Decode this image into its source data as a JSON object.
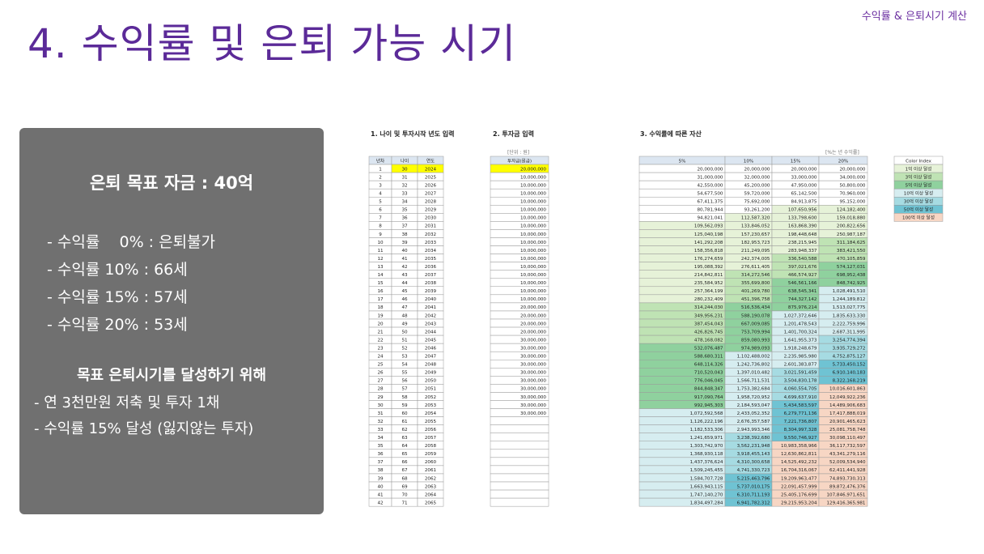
{
  "corner_label": "수익률 & 은퇴시기 계산",
  "title": "4. 수익률 및 은퇴 가능 시기",
  "panel": {
    "goal": "은퇴 목표 자금 : 40억",
    "rates": [
      "- 수익률    0% : 은퇴불가",
      "- 수익률 10% : 66세",
      "- 수익률 15% : 57세",
      "- 수익률 20% : 53세"
    ],
    "subheading": "목표 은퇴시기를 달성하기 위해",
    "plan": [
      "- 연 3천만원 저축 및 투자 1채",
      "- 수익률 15% 달성 (잃지않는 투자)"
    ]
  },
  "section1": {
    "title": "1. 나이 및 투자시작 년도 입력",
    "headers": [
      "년차",
      "나이",
      "연도"
    ]
  },
  "section2": {
    "title": "2. 투자금 입력",
    "unit": "[단위 : 원]",
    "header": "투자금(원금)",
    "values": [
      "20,000,000",
      "10,000,000",
      "10,000,000",
      "10,000,000",
      "10,000,000",
      "10,000,000",
      "10,000,000",
      "10,000,000",
      "10,000,000",
      "10,000,000",
      "10,000,000",
      "10,000,000",
      "10,000,000",
      "10,000,000",
      "10,000,000",
      "10,000,000",
      "10,000,000",
      "20,000,000",
      "20,000,000",
      "20,000,000",
      "20,000,000",
      "30,000,000",
      "30,000,000",
      "30,000,000",
      "30,000,000",
      "30,000,000",
      "30,000,000",
      "30,000,000",
      "30,000,000",
      "30,000,000",
      "30,000,000",
      "",
      "",
      "",
      "",
      "",
      "",
      "",
      "",
      "",
      "",
      ""
    ]
  },
  "section3": {
    "title": "3. 수익률에 따른 자산",
    "unit": "[%는 년 수익률]",
    "headers": [
      "5%",
      "10%",
      "15%",
      "20%"
    ],
    "rows": [
      [
        "20,000,000",
        "20,000,000",
        "20,000,000",
        "20,000,000"
      ],
      [
        "31,000,000",
        "32,000,000",
        "33,000,000",
        "34,000,000"
      ],
      [
        "42,550,000",
        "45,200,000",
        "47,950,000",
        "50,800,000"
      ],
      [
        "54,677,500",
        "59,720,000",
        "65,142,500",
        "70,960,000"
      ],
      [
        "67,411,375",
        "75,692,000",
        "84,913,875",
        "95,152,000"
      ],
      [
        "80,781,944",
        "93,261,200",
        "107,650,956",
        "124,182,400"
      ],
      [
        "94,821,041",
        "112,587,320",
        "133,798,600",
        "159,018,880"
      ],
      [
        "109,562,093",
        "133,846,052",
        "163,868,390",
        "200,822,656"
      ],
      [
        "125,040,198",
        "157,230,657",
        "198,448,648",
        "250,987,187"
      ],
      [
        "141,292,208",
        "182,953,723",
        "238,215,945",
        "311,184,625"
      ],
      [
        "158,356,818",
        "211,249,095",
        "283,948,337",
        "383,421,550"
      ],
      [
        "176,274,659",
        "242,374,005",
        "336,540,588",
        "470,105,859"
      ],
      [
        "195,088,392",
        "276,611,405",
        "397,021,676",
        "574,127,031"
      ],
      [
        "214,842,811",
        "314,272,546",
        "466,574,927",
        "698,952,438"
      ],
      [
        "235,584,952",
        "355,699,800",
        "546,561,166",
        "848,742,925"
      ],
      [
        "257,364,199",
        "401,269,780",
        "638,545,341",
        "1,028,491,510"
      ],
      [
        "280,232,409",
        "451,396,758",
        "744,327,142",
        "1,244,189,812"
      ],
      [
        "314,244,030",
        "516,536,434",
        "875,976,214",
        "1,513,027,775"
      ],
      [
        "349,956,231",
        "588,190,078",
        "1,027,372,646",
        "1,835,633,330"
      ],
      [
        "387,454,043",
        "667,009,085",
        "1,201,478,543",
        "2,222,759,996"
      ],
      [
        "426,826,745",
        "753,709,994",
        "1,401,700,324",
        "2,687,311,995"
      ],
      [
        "478,168,082",
        "859,080,993",
        "1,641,955,373",
        "3,254,774,394"
      ],
      [
        "532,076,487",
        "974,989,093",
        "1,918,248,679",
        "3,935,729,272"
      ],
      [
        "588,680,311",
        "1,102,488,002",
        "2,235,985,980",
        "4,752,875,127"
      ],
      [
        "648,114,326",
        "1,242,736,802",
        "2,601,383,877",
        "5,733,450,152"
      ],
      [
        "710,520,043",
        "1,397,010,482",
        "3,021,591,459",
        "6,910,140,183"
      ],
      [
        "776,046,045",
        "1,566,711,531",
        "3,504,830,178",
        "8,322,168,219"
      ],
      [
        "844,848,347",
        "1,753,382,684",
        "4,060,554,705",
        "10,016,601,863"
      ],
      [
        "917,090,764",
        "1,958,720,952",
        "4,699,637,910",
        "12,049,922,236"
      ],
      [
        "992,945,303",
        "2,184,593,047",
        "5,434,583,597",
        "14,489,906,683"
      ],
      [
        "1,072,592,568",
        "2,433,052,352",
        "6,279,771,136",
        "17,417,888,019"
      ],
      [
        "1,126,222,196",
        "2,676,357,587",
        "7,221,736,807",
        "20,901,465,623"
      ],
      [
        "1,182,533,306",
        "2,943,993,346",
        "8,304,997,328",
        "25,081,758,748"
      ],
      [
        "1,241,659,971",
        "3,238,392,680",
        "9,550,746,927",
        "30,098,110,497"
      ],
      [
        "1,303,742,970",
        "3,562,231,948",
        "10,983,358,966",
        "36,117,732,597"
      ],
      [
        "1,368,930,118",
        "3,918,455,143",
        "12,630,862,811",
        "43,341,279,116"
      ],
      [
        "1,437,376,624",
        "4,310,300,658",
        "14,525,492,232",
        "52,009,534,940"
      ],
      [
        "1,509,245,455",
        "4,741,330,723",
        "16,704,316,067",
        "62,411,441,928"
      ],
      [
        "1,584,707,728",
        "5,215,463,796",
        "19,209,963,477",
        "74,893,730,313"
      ],
      [
        "1,663,943,115",
        "5,737,010,175",
        "22,091,457,999",
        "89,872,476,376"
      ],
      [
        "1,747,140,270",
        "6,310,711,193",
        "25,405,176,699",
        "107,846,971,651"
      ],
      [
        "1,834,497,284",
        "6,941,782,312",
        "29,215,953,204",
        "129,416,365,981"
      ]
    ]
  },
  "color_index": {
    "header": "Color Index",
    "items": [
      {
        "label": "1억 이상 달성",
        "color": "#e6f2d8"
      },
      {
        "label": "3억 이상 달성",
        "color": "#bfe3b4"
      },
      {
        "label": "5억 이상 달성",
        "color": "#8fd19e"
      },
      {
        "label": "10억 이상 달성",
        "color": "#d6edf0"
      },
      {
        "label": "30억 이상 달성",
        "color": "#a6dbe2"
      },
      {
        "label": "50억 이상 달성",
        "color": "#6fc3d3"
      },
      {
        "label": "100억 이상 달성",
        "color": "#f7d6c4"
      }
    ]
  },
  "colors": {
    "title": "#5b2a98",
    "panel": "#707070",
    "header_fill": "#dce6f1",
    "input_highlight": "#ffff00"
  }
}
